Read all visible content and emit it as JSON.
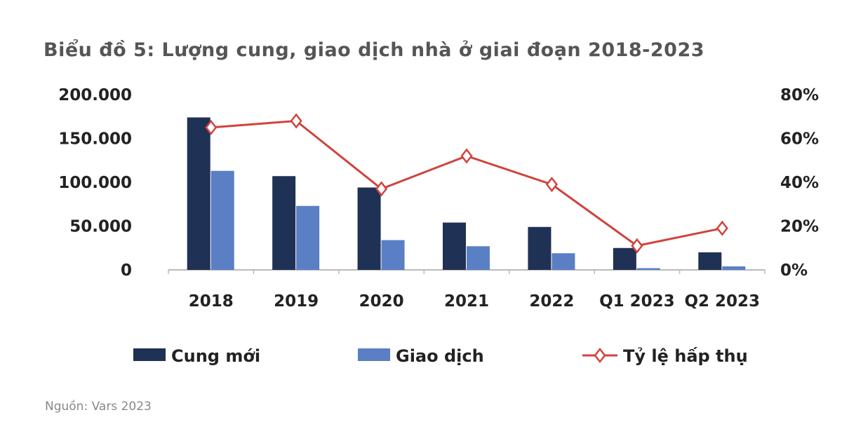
{
  "chart_data": {
    "type": "bar+line",
    "title": "Biểu đồ 5: Lượng cung, giao dịch nhà ở giai đoạn 2018-2023",
    "source": "Nguồn: Vars 2023",
    "categories": [
      "2018",
      "2019",
      "2020",
      "2021",
      "2022",
      "Q1 2023",
      "Q2 2023"
    ],
    "y_left": {
      "range": [
        0,
        200000
      ],
      "ticks": [
        0,
        50000,
        100000,
        150000,
        200000
      ],
      "tick_labels": [
        "0",
        "50.000",
        "100.000",
        "150.000",
        "200.000"
      ]
    },
    "y_right": {
      "range": [
        0,
        80
      ],
      "ticks": [
        0,
        20,
        40,
        60,
        80
      ],
      "tick_labels": [
        "0%",
        "20%",
        "40%",
        "60%",
        "80%"
      ]
    },
    "grid": false,
    "legend_placement": "bottom",
    "series": [
      {
        "name": "Cung mới",
        "type": "bar",
        "axis": "left",
        "color": "#1f3154",
        "values": [
          174000,
          107000,
          94000,
          54000,
          49000,
          25000,
          20000
        ]
      },
      {
        "name": "Giao dịch",
        "type": "bar",
        "axis": "left",
        "color": "#5b7fc4",
        "values": [
          113000,
          73000,
          34000,
          27000,
          19000,
          2000,
          4000
        ]
      },
      {
        "name": "Tỷ lệ hấp thụ",
        "type": "line",
        "axis": "right",
        "unit": "%",
        "color": "#d0433d",
        "marker": "diamond-open",
        "values": [
          65,
          68,
          37,
          52,
          39,
          11,
          19
        ]
      }
    ]
  }
}
